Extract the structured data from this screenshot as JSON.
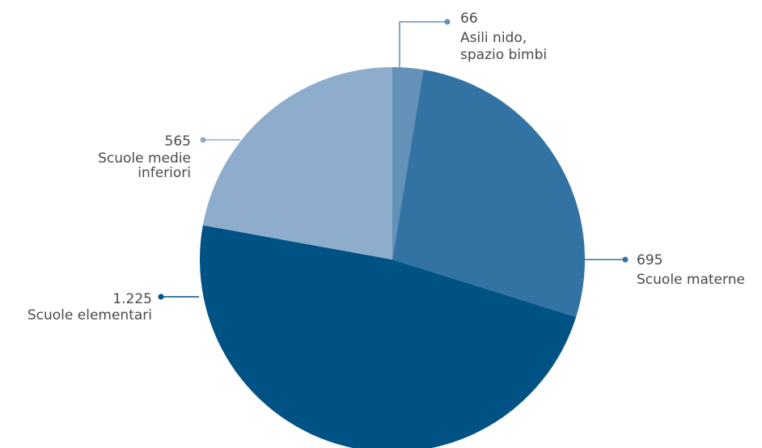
{
  "chart_data": {
    "type": "pie",
    "title": "",
    "slices": [
      {
        "label_lines": [
          "Asili nido,",
          "spazio bimbi"
        ],
        "value": 66,
        "value_label": "66",
        "color": "#6391b8"
      },
      {
        "label_lines": [
          "Scuole materne"
        ],
        "value": 695,
        "value_label": "695",
        "color": "#3373a3"
      },
      {
        "label_lines": [
          "Scuole elementari"
        ],
        "value": 1225,
        "value_label": "1.225",
        "color": "#005285"
      },
      {
        "label_lines": [
          "Scuole medie",
          "inferiori"
        ],
        "value": 565,
        "value_label": "565",
        "color": "#8eaccb"
      }
    ],
    "start_angle_deg": 0,
    "direction": "clockwise"
  }
}
